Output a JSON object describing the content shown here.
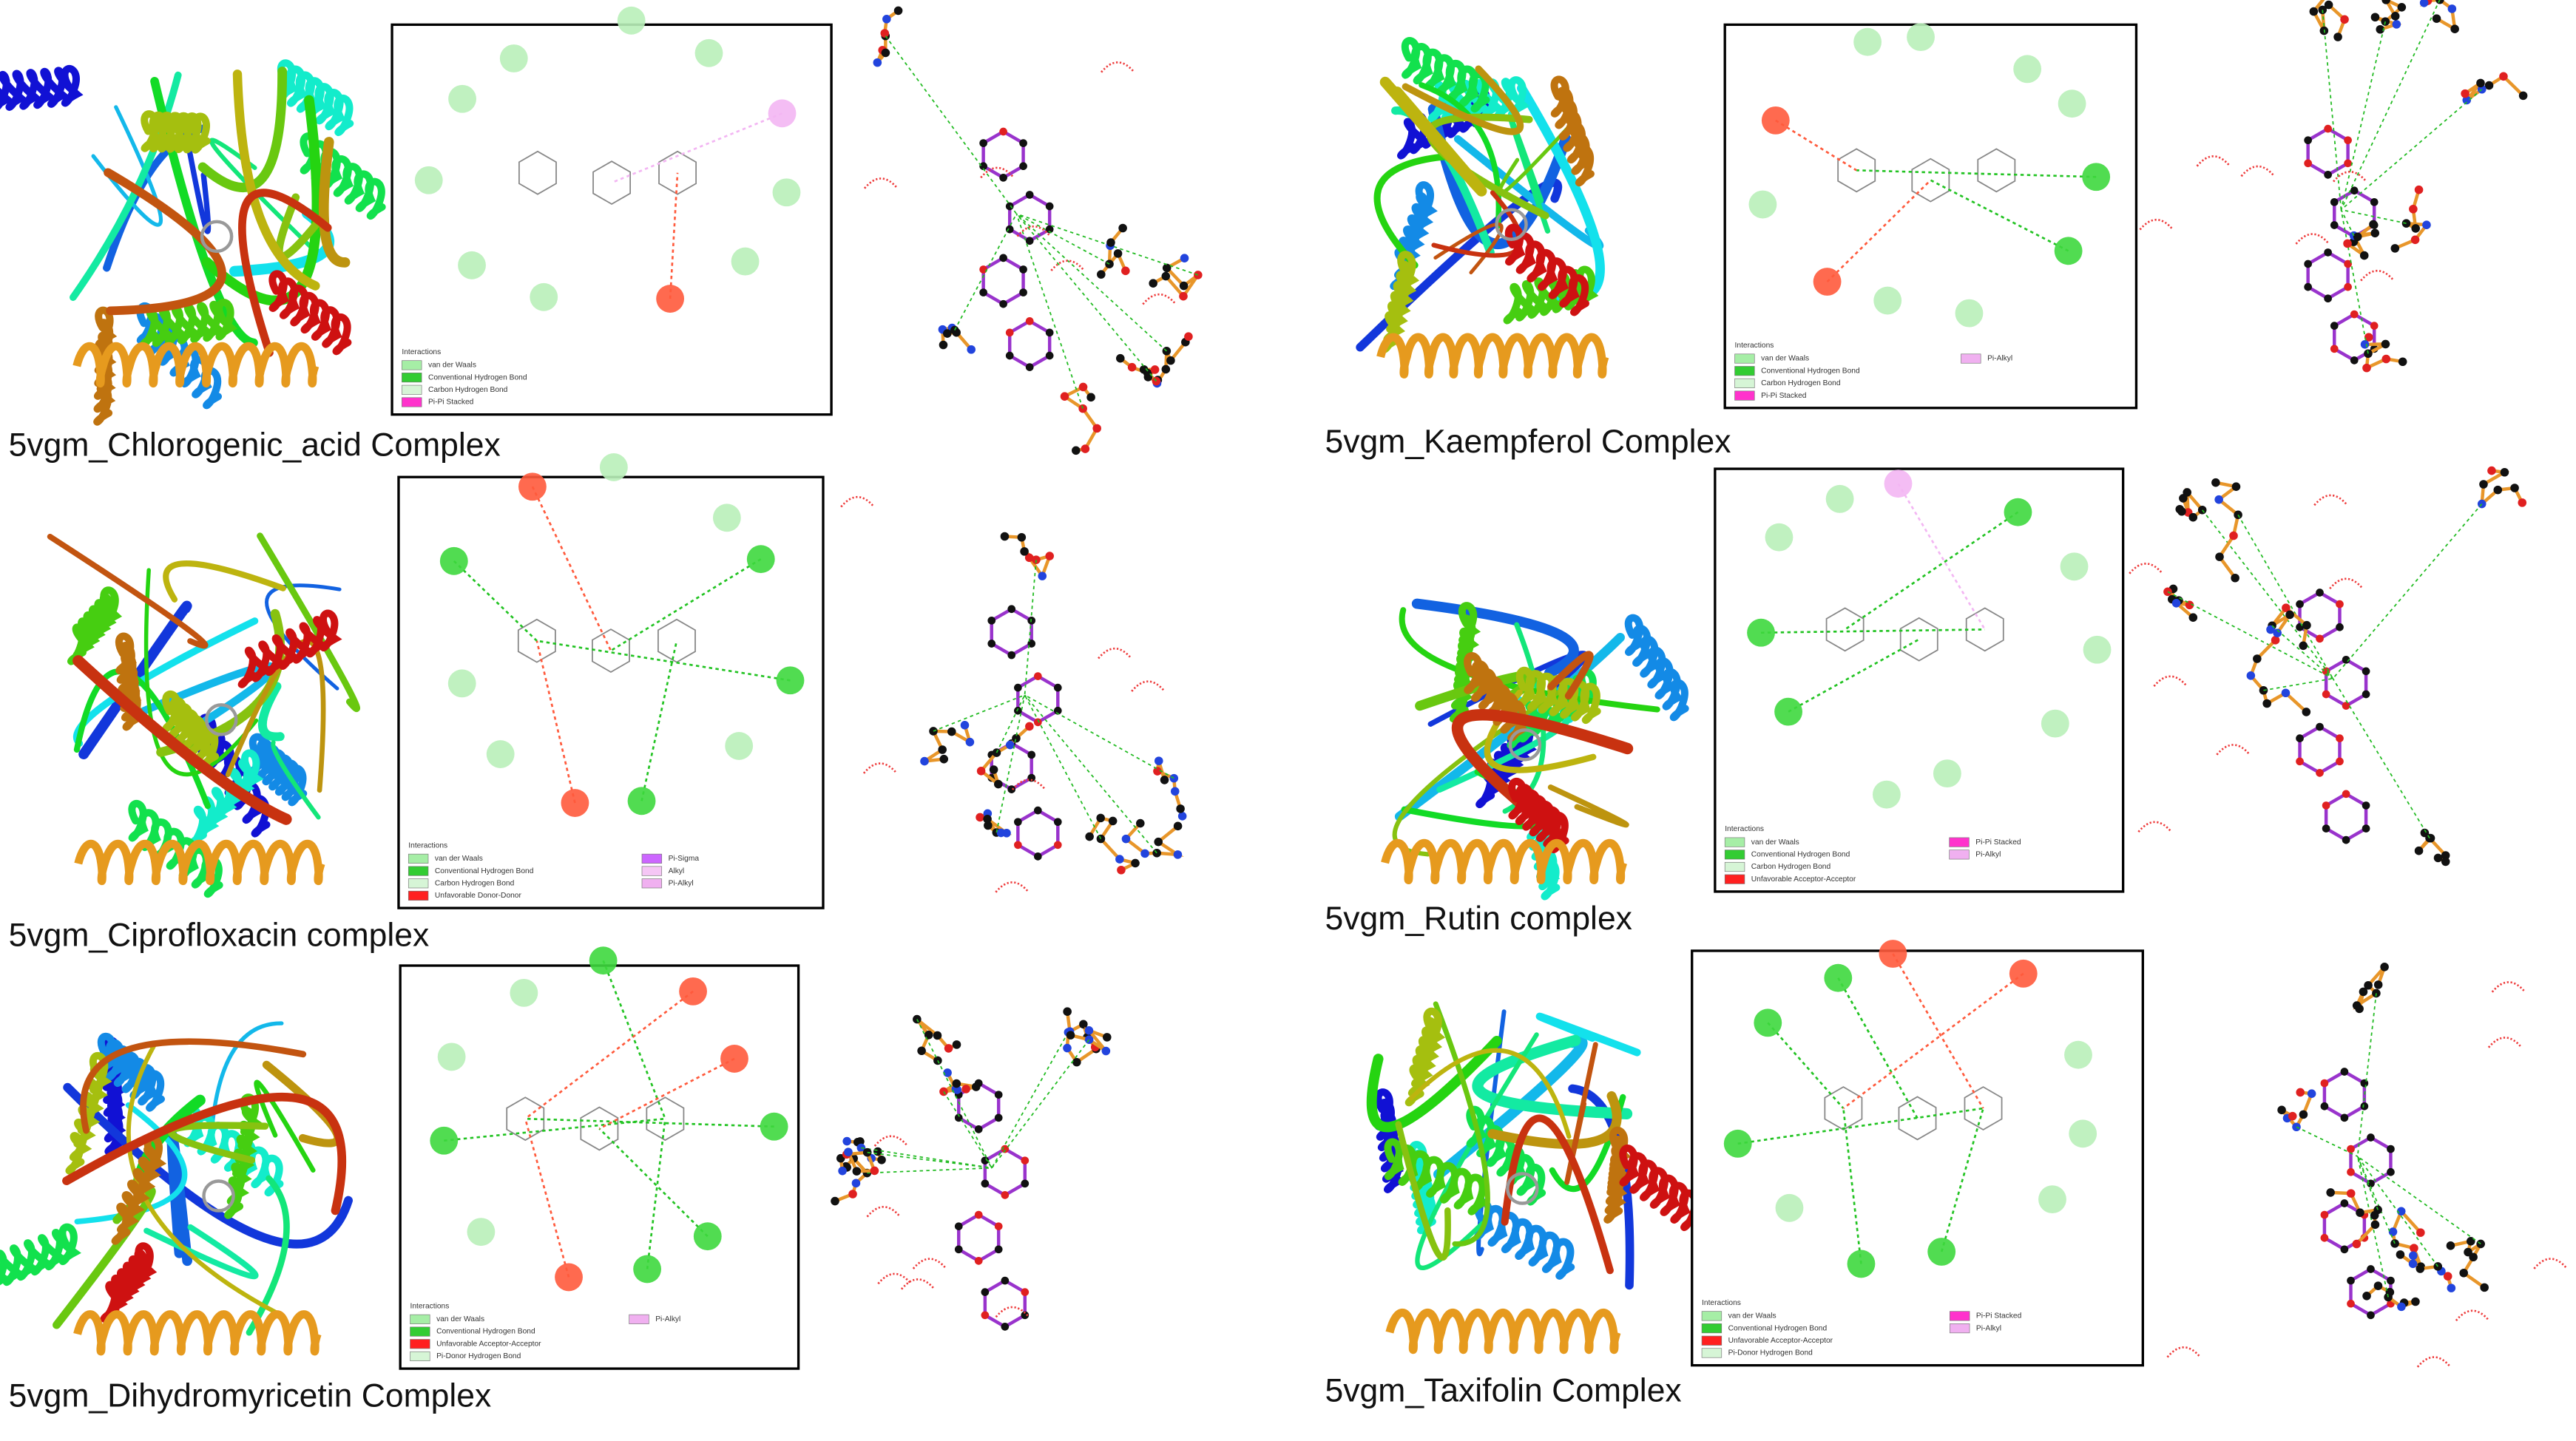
{
  "panels": [
    {
      "caption": "5vgm_Chlorogenic_acid Complex",
      "legend_title": "Interactions",
      "legend": [
        {
          "label": "van der Waals",
          "color": "#a6eea6"
        },
        {
          "label": "Conventional Hydrogen Bond",
          "color": "#33cc33"
        },
        {
          "label": "Carbon Hydrogen Bond",
          "color": "#d6f5d6"
        },
        {
          "label": "Pi-Pi Stacked",
          "color": "#ff33cc"
        }
      ]
    },
    {
      "caption": "5vgm_Ciprofloxacin complex",
      "legend_title": "Interactions",
      "legend": [
        {
          "label": "van der Waals",
          "color": "#a6eea6"
        },
        {
          "label": "Conventional Hydrogen Bond",
          "color": "#33cc33"
        },
        {
          "label": "Carbon Hydrogen Bond",
          "color": "#d6f5d6"
        },
        {
          "label": "Unfavorable Donor-Donor",
          "color": "#ff2020"
        },
        {
          "label": "Pi-Sigma",
          "color": "#cc66ff"
        },
        {
          "label": "Alkyl",
          "color": "#f5c6f5"
        },
        {
          "label": "Pi-Alkyl",
          "color": "#f0b0f0"
        }
      ]
    },
    {
      "caption": "5vgm_Dihydromyricetin Complex",
      "legend_title": "Interactions",
      "legend": [
        {
          "label": "van der Waals",
          "color": "#a6eea6"
        },
        {
          "label": "Conventional Hydrogen Bond",
          "color": "#33cc33"
        },
        {
          "label": "Unfavorable Acceptor-Acceptor",
          "color": "#ff2020"
        },
        {
          "label": "Pi-Donor Hydrogen Bond",
          "color": "#d6f5d6"
        },
        {
          "label": "Pi-Alkyl",
          "color": "#f0b0f0"
        }
      ]
    },
    {
      "caption": "5vgm_Kaempferol Complex",
      "legend_title": "Interactions",
      "legend": [
        {
          "label": "van der Waals",
          "color": "#a6eea6"
        },
        {
          "label": "Conventional Hydrogen Bond",
          "color": "#33cc33"
        },
        {
          "label": "Carbon Hydrogen Bond",
          "color": "#d6f5d6"
        },
        {
          "label": "Pi-Pi Stacked",
          "color": "#ff33cc"
        },
        {
          "label": "Pi-Alkyl",
          "color": "#f0b0f0"
        }
      ]
    },
    {
      "caption": "5vgm_Rutin complex",
      "legend_title": "Interactions",
      "legend": [
        {
          "label": "van der Waals",
          "color": "#a6eea6"
        },
        {
          "label": "Conventional Hydrogen Bond",
          "color": "#33cc33"
        },
        {
          "label": "Carbon Hydrogen Bond",
          "color": "#d6f5d6"
        },
        {
          "label": "Unfavorable Acceptor-Acceptor",
          "color": "#ff2020"
        },
        {
          "label": "Pi-Pi Stacked",
          "color": "#ff33cc"
        },
        {
          "label": "Pi-Alkyl",
          "color": "#f0b0f0"
        }
      ]
    },
    {
      "caption": "5vgm_Taxifolin Complex",
      "legend_title": "Interactions",
      "legend": [
        {
          "label": "van der Waals",
          "color": "#a6eea6"
        },
        {
          "label": "Conventional Hydrogen Bond",
          "color": "#33cc33"
        },
        {
          "label": "Unfavorable Acceptor-Acceptor",
          "color": "#ff2020"
        },
        {
          "label": "Pi-Donor Hydrogen Bond",
          "color": "#d6f5d6"
        },
        {
          "label": "Pi-Pi Stacked",
          "color": "#ff33cc"
        },
        {
          "label": "Pi-Alkyl",
          "color": "#f0b0f0"
        }
      ]
    }
  ]
}
